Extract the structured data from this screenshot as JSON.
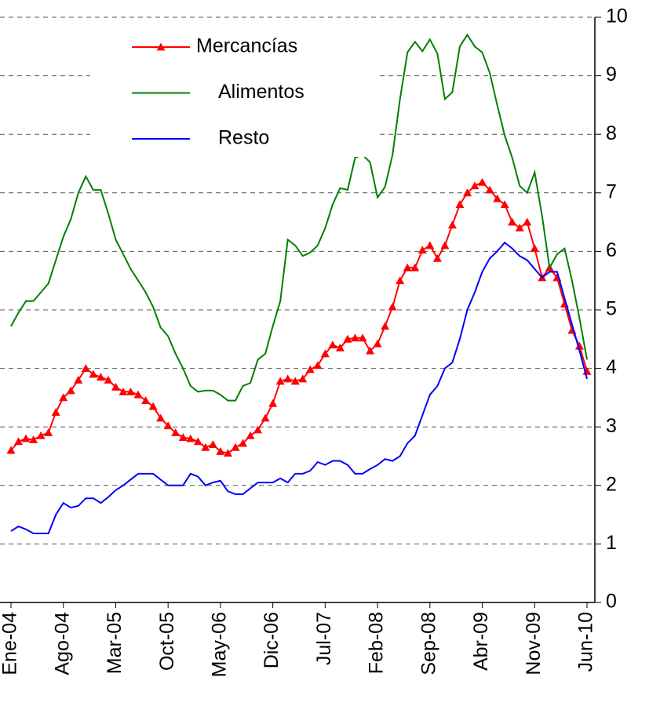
{
  "chart_data": {
    "type": "line",
    "categories": [
      "Ene-04",
      null,
      null,
      null,
      null,
      null,
      null,
      "Ago-04",
      null,
      null,
      null,
      null,
      null,
      null,
      "Mar-05",
      null,
      null,
      null,
      null,
      null,
      null,
      "Oct-05",
      null,
      null,
      null,
      null,
      null,
      null,
      "May-06",
      null,
      null,
      null,
      null,
      null,
      null,
      "Dic-06",
      null,
      null,
      null,
      null,
      null,
      null,
      "Jul-07",
      null,
      null,
      null,
      null,
      null,
      null,
      "Feb-08",
      null,
      null,
      null,
      null,
      null,
      null,
      "Sep-08",
      null,
      null,
      null,
      null,
      null,
      null,
      "Abr-09",
      null,
      null,
      null,
      null,
      null,
      null,
      "Nov-09",
      null,
      null,
      null,
      null,
      null,
      null,
      "Jun-10"
    ],
    "series": [
      {
        "name": "Mercancías",
        "color": "#ff0000",
        "marker": "triangle",
        "values": [
          2.6,
          2.75,
          2.8,
          2.78,
          2.85,
          2.9,
          3.25,
          3.5,
          3.62,
          3.8,
          4.0,
          3.9,
          3.85,
          3.8,
          3.68,
          3.6,
          3.6,
          3.55,
          3.45,
          3.35,
          3.15,
          3.02,
          2.9,
          2.82,
          2.8,
          2.75,
          2.65,
          2.7,
          2.58,
          2.55,
          2.65,
          2.72,
          2.85,
          2.95,
          3.15,
          3.4,
          3.78,
          3.82,
          3.78,
          3.82,
          3.98,
          4.05,
          4.25,
          4.4,
          4.35,
          4.5,
          4.52,
          4.52,
          4.3,
          4.42,
          4.72,
          5.05,
          5.5,
          5.72,
          5.72,
          6.02,
          6.1,
          5.88,
          6.1,
          6.45,
          6.8,
          7.0,
          7.12,
          7.18,
          7.05,
          6.9,
          6.8,
          6.5,
          6.4,
          6.5,
          6.05,
          5.55,
          5.72,
          5.55,
          5.1,
          4.65,
          4.38,
          3.95
        ]
      },
      {
        "name": "Alimentos",
        "color": "#008000",
        "values": [
          4.72,
          4.95,
          5.15,
          5.15,
          5.3,
          5.45,
          5.85,
          6.25,
          6.55,
          7.0,
          7.28,
          7.05,
          7.05,
          6.65,
          6.2,
          5.95,
          5.7,
          5.5,
          5.3,
          5.05,
          4.7,
          4.55,
          4.25,
          4.0,
          3.7,
          3.6,
          3.62,
          3.62,
          3.55,
          3.45,
          3.45,
          3.7,
          3.75,
          4.15,
          4.25,
          4.72,
          5.15,
          6.2,
          6.1,
          5.92,
          5.98,
          6.1,
          6.4,
          6.8,
          7.08,
          7.05,
          7.6,
          7.65,
          7.52,
          6.92,
          7.1,
          7.65,
          8.6,
          9.4,
          9.58,
          9.42,
          9.62,
          9.38,
          8.6,
          8.72,
          9.5,
          9.7,
          9.5,
          9.4,
          9.05,
          8.5,
          7.98,
          7.6,
          7.12,
          7.0,
          7.35,
          6.6,
          5.72,
          5.95,
          6.05,
          5.5,
          4.85,
          4.15
        ]
      },
      {
        "name": "Resto",
        "color": "#0000ff",
        "values": [
          1.22,
          1.3,
          1.25,
          1.18,
          1.18,
          1.18,
          1.5,
          1.7,
          1.62,
          1.65,
          1.78,
          1.78,
          1.7,
          1.8,
          1.92,
          2.0,
          2.1,
          2.2,
          2.2,
          2.2,
          2.1,
          2.0,
          2.0,
          2.0,
          2.2,
          2.15,
          2.0,
          2.05,
          2.08,
          1.9,
          1.85,
          1.85,
          1.95,
          2.05,
          2.05,
          2.05,
          2.12,
          2.05,
          2.2,
          2.2,
          2.25,
          2.4,
          2.35,
          2.42,
          2.42,
          2.35,
          2.2,
          2.2,
          2.28,
          2.35,
          2.45,
          2.42,
          2.5,
          2.72,
          2.85,
          3.2,
          3.55,
          3.7,
          4.0,
          4.1,
          4.5,
          5.0,
          5.3,
          5.65,
          5.88,
          6.0,
          6.15,
          6.05,
          5.92,
          5.85,
          5.7,
          5.55,
          5.65,
          5.65,
          5.2,
          4.75,
          4.3,
          3.82
        ]
      }
    ],
    "ylim": [
      0,
      10
    ],
    "yticks": [
      0,
      1,
      2,
      3,
      4,
      5,
      6,
      7,
      8,
      9,
      10
    ],
    "grid": true,
    "y_axis_side": "right",
    "legend": "top-left"
  }
}
